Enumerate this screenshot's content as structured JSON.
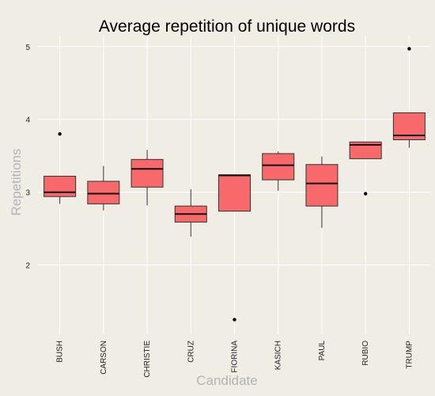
{
  "chart_data": {
    "type": "box",
    "title": "Average repetition of unique words",
    "xlabel": "Candidate",
    "ylabel": "Repetitions",
    "ylim": [
      1.05,
      5.15
    ],
    "yticks": [
      2,
      3,
      4,
      5
    ],
    "ytick_labels": [
      "2",
      "3",
      "4",
      "5"
    ],
    "grid": true,
    "legend": "none",
    "colors": {
      "background": "#f0ede4",
      "grid": "#ffffff",
      "box_fill": "#f8696b",
      "box_stroke": "#333333",
      "median": "#111111",
      "outlier": "#000000"
    },
    "categories": [
      "BUSH",
      "CARSON",
      "CHRISTIE",
      "CRUZ",
      "FIORINA",
      "KASICH",
      "PAUL",
      "RUBIO",
      "TRUMP"
    ],
    "boxes": [
      {
        "category": "BUSH",
        "whisker_low": 2.84,
        "q1": 2.94,
        "median": 3.0,
        "q3": 3.22,
        "whisker_high": 3.22,
        "outliers": [
          3.8
        ]
      },
      {
        "category": "CARSON",
        "whisker_low": 2.75,
        "q1": 2.84,
        "median": 2.98,
        "q3": 3.15,
        "whisker_high": 3.36,
        "outliers": []
      },
      {
        "category": "CHRISTIE",
        "whisker_low": 2.82,
        "q1": 3.07,
        "median": 3.32,
        "q3": 3.45,
        "whisker_high": 3.58,
        "outliers": []
      },
      {
        "category": "CRUZ",
        "whisker_low": 2.39,
        "q1": 2.59,
        "median": 2.7,
        "q3": 2.81,
        "whisker_high": 3.04,
        "outliers": []
      },
      {
        "category": "FIORINA",
        "whisker_low": 2.74,
        "q1": 2.74,
        "median": 3.23,
        "q3": 3.24,
        "whisker_high": 3.24,
        "outliers": [
          1.25
        ]
      },
      {
        "category": "KASICH",
        "whisker_low": 3.02,
        "q1": 3.17,
        "median": 3.37,
        "q3": 3.53,
        "whisker_high": 3.56,
        "outliers": []
      },
      {
        "category": "PAUL",
        "whisker_low": 2.51,
        "q1": 2.81,
        "median": 3.12,
        "q3": 3.38,
        "whisker_high": 3.49,
        "outliers": []
      },
      {
        "category": "RUBIO",
        "whisker_low": 3.46,
        "q1": 3.46,
        "median": 3.65,
        "q3": 3.69,
        "whisker_high": 3.69,
        "outliers": [
          2.98
        ]
      },
      {
        "category": "TRUMP",
        "whisker_low": 3.61,
        "q1": 3.72,
        "median": 3.78,
        "q3": 4.09,
        "whisker_high": 4.09,
        "outliers": [
          4.97
        ]
      }
    ]
  }
}
